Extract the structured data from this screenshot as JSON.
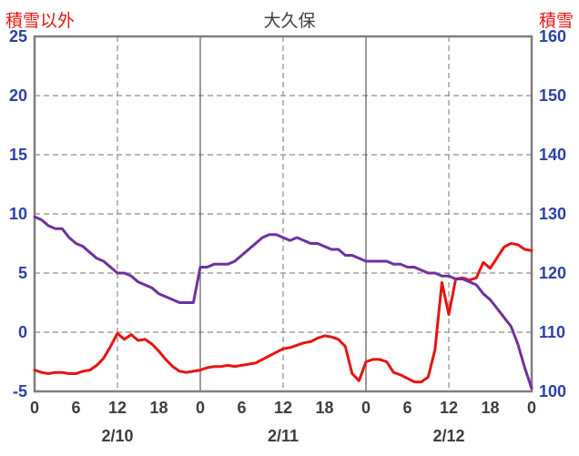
{
  "page": {
    "left_axis_title": "積雪以外",
    "chart_title": "大久保",
    "right_axis_title": "積雪"
  },
  "chart_data": {
    "type": "line",
    "title": "大久保",
    "x_unit": "hours from 2/10 00:00",
    "x": [
      0,
      1,
      2,
      3,
      4,
      5,
      6,
      7,
      8,
      9,
      10,
      11,
      12,
      13,
      14,
      15,
      16,
      17,
      18,
      19,
      20,
      21,
      22,
      23,
      24,
      25,
      26,
      27,
      28,
      29,
      30,
      31,
      32,
      33,
      34,
      35,
      36,
      37,
      38,
      39,
      40,
      41,
      42,
      43,
      44,
      45,
      46,
      47,
      48,
      49,
      50,
      51,
      52,
      53,
      54,
      55,
      56,
      57,
      58,
      59,
      60,
      61,
      62,
      63,
      64,
      65,
      66,
      67,
      68,
      69,
      70,
      71,
      72
    ],
    "series": [
      {
        "name": "積雪以外",
        "axis": "left",
        "color": "#e8140f",
        "values": [
          -3.2,
          -3.4,
          -3.5,
          -3.4,
          -3.4,
          -3.5,
          -3.5,
          -3.3,
          -3.2,
          -2.8,
          -2.2,
          -1.2,
          -0.1,
          -0.6,
          -0.2,
          -0.7,
          -0.6,
          -1.0,
          -1.6,
          -2.3,
          -2.9,
          -3.3,
          -3.4,
          -3.3,
          -3.2,
          -3.0,
          -2.9,
          -2.9,
          -2.8,
          -2.9,
          -2.8,
          -2.7,
          -2.6,
          -2.3,
          -2.0,
          -1.7,
          -1.4,
          -1.3,
          -1.1,
          -0.9,
          -0.8,
          -0.5,
          -0.3,
          -0.4,
          -0.6,
          -1.2,
          -3.5,
          -4.1,
          -2.5,
          -2.3,
          -2.3,
          -2.5,
          -3.4,
          -3.6,
          -3.9,
          -4.2,
          -4.2,
          -3.8,
          -1.5,
          4.2,
          1.5,
          4.5,
          4.6,
          4.4,
          4.6,
          5.9,
          5.4,
          6.3,
          7.2,
          7.5,
          7.4,
          7.0,
          6.9
        ]
      },
      {
        "name": "積雪",
        "axis": "right",
        "color": "#7030a0",
        "values": [
          129.5,
          129,
          128,
          127.5,
          127.5,
          126,
          125,
          124.5,
          123.5,
          122.5,
          122,
          121,
          120,
          120,
          119.5,
          118.5,
          118,
          117.5,
          116.5,
          116,
          115.5,
          115,
          115,
          115,
          121,
          121,
          121.5,
          121.5,
          121.5,
          122,
          123,
          124,
          125,
          126,
          126.5,
          126.5,
          126,
          125.5,
          126,
          125.5,
          125,
          125,
          124.5,
          124,
          124,
          123,
          123,
          122.5,
          122,
          122,
          122,
          122,
          121.5,
          121.5,
          121,
          121,
          120.5,
          120,
          120,
          119.5,
          119.5,
          119,
          119,
          118.5,
          118,
          116.5,
          115.5,
          114,
          112.5,
          111,
          108,
          104,
          100.5
        ]
      }
    ],
    "left_axis": {
      "title": "積雪以外",
      "min": -5,
      "max": 25,
      "ticks": [
        25,
        20,
        15,
        10,
        5,
        0,
        -5
      ]
    },
    "right_axis": {
      "title": "積雪",
      "min": 100,
      "max": 160,
      "ticks": [
        160,
        150,
        140,
        130,
        120,
        110,
        100
      ]
    },
    "x_axis": {
      "tick_hours": [
        0,
        6,
        12,
        18,
        24,
        30,
        36,
        42,
        48,
        54,
        60,
        66,
        72
      ],
      "tick_labels": [
        "0",
        "6",
        "12",
        "18",
        "0",
        "6",
        "12",
        "18",
        "0",
        "6",
        "12",
        "18",
        "0"
      ],
      "day_label_positions": [
        12,
        36,
        60
      ],
      "day_labels": [
        "2/10",
        "2/11",
        "2/12"
      ]
    },
    "grid": {
      "h_dashed_values": [
        20,
        15,
        10,
        5,
        0
      ],
      "v_dashed_hours": [
        12,
        36,
        60
      ],
      "v_solid_hours": [
        24,
        48
      ]
    },
    "colors": {
      "axis_labels": "#2b3fae",
      "x_labels": "#3d3d3d",
      "grid_dashed": "#8c8c8c",
      "grid_solid": "#595959",
      "border": "#7f7f7f",
      "title": "#404040",
      "axis_title": "#e8140f"
    },
    "legend": "none",
    "grid_on": true
  }
}
